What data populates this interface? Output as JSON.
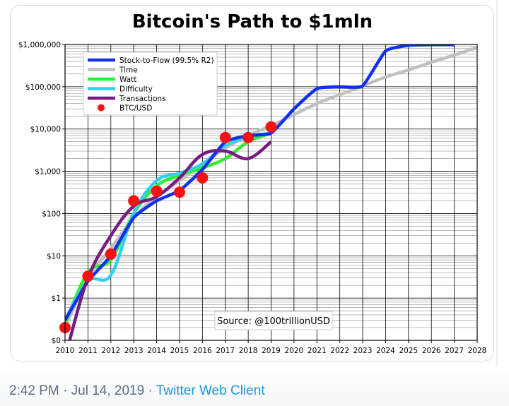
{
  "tweet": {
    "time": "2:42 PM",
    "separator": "·",
    "date": "Jul 14, 2019",
    "source_client": "Twitter Web Client"
  },
  "colors": {
    "link": "#1b95e0",
    "meta_text": "#5b7083"
  },
  "chart_data": {
    "type": "line",
    "title": "Bitcoin's Path to $1mln",
    "xlabel": "",
    "ylabel": "",
    "xlim": [
      2010,
      2028
    ],
    "ylim": [
      0.1,
      1000000
    ],
    "yscale": "log",
    "grid": true,
    "legend_placement": "top-left",
    "annotation": "Source: @100trillionUSD",
    "x_ticks": [
      "2010",
      "2011",
      "2012",
      "2013",
      "2014",
      "2015",
      "2016",
      "2017",
      "2018",
      "2019",
      "2020",
      "2021",
      "2022",
      "2023",
      "2024",
      "2025",
      "2026",
      "2027",
      "2028"
    ],
    "y_ticks": [
      {
        "value": 0.1,
        "label": "$0"
      },
      {
        "value": 1,
        "label": "$1"
      },
      {
        "value": 10,
        "label": "$10"
      },
      {
        "value": 100,
        "label": "$100"
      },
      {
        "value": 1000,
        "label": "$1,000"
      },
      {
        "value": 10000,
        "label": "$10,000"
      },
      {
        "value": 100000,
        "label": "$100,000"
      },
      {
        "value": 1000000,
        "label": "$1,000,000"
      }
    ],
    "series": [
      {
        "name": "Stock-to-Flow (99.5% R2)",
        "color": "#1030f0",
        "kind": "line",
        "x": [
          2010,
          2011,
          2012,
          2013,
          2014,
          2015,
          2016,
          2017,
          2018,
          2019,
          2020,
          2021,
          2022,
          2023,
          2024,
          2025,
          2026,
          2027
        ],
        "y": [
          0.3,
          2.5,
          10,
          80,
          200,
          350,
          1100,
          5000,
          7000,
          8000,
          30000,
          90000,
          100000,
          105000,
          700000,
          950000,
          1000000,
          1000000
        ]
      },
      {
        "name": "Time",
        "color": "#c0c0c0",
        "kind": "line",
        "x": [
          2010,
          2011,
          2012,
          2013,
          2014,
          2015,
          2016,
          2017,
          2018,
          2019,
          2020,
          2021,
          2022,
          2023,
          2024,
          2025,
          2026,
          2027,
          2028
        ],
        "y": [
          0.2,
          3,
          15,
          80,
          250,
          600,
          1500,
          3500,
          7000,
          12000,
          22000,
          40000,
          65000,
          105000,
          170000,
          250000,
          380000,
          560000,
          850000
        ]
      },
      {
        "name": "Watt",
        "color": "#30f030",
        "kind": "line",
        "x": [
          2010,
          2011,
          2012,
          2013,
          2014,
          2015,
          2016,
          2017,
          2018,
          2019
        ],
        "y": [
          0.25,
          4,
          8,
          100,
          450,
          800,
          1200,
          2000,
          5000,
          8000
        ]
      },
      {
        "name": "Difficulty",
        "color": "#30d0f0",
        "kind": "line",
        "x": [
          2010,
          2011,
          2012,
          2013,
          2014,
          2015,
          2016,
          2017,
          2018,
          2019
        ],
        "y": [
          0.3,
          2.5,
          3.5,
          100,
          600,
          900,
          1500,
          4000,
          6500,
          8000
        ]
      },
      {
        "name": "Transactions",
        "color": "#781c81",
        "kind": "line",
        "x": [
          2010.2,
          2011,
          2012,
          2013,
          2014,
          2015,
          2016,
          2017,
          2018,
          2019
        ],
        "y": [
          0.1,
          3,
          30,
          150,
          250,
          700,
          2500,
          3000,
          2000,
          5000
        ]
      },
      {
        "name": "BTC/USD",
        "color": "#ff1010",
        "kind": "scatter",
        "x": [
          2010,
          2011,
          2012,
          2013,
          2014,
          2015,
          2016,
          2017,
          2018,
          2019
        ],
        "y": [
          0.2,
          3.3,
          11,
          200,
          340,
          320,
          700,
          6300,
          6300,
          11200
        ]
      }
    ]
  }
}
